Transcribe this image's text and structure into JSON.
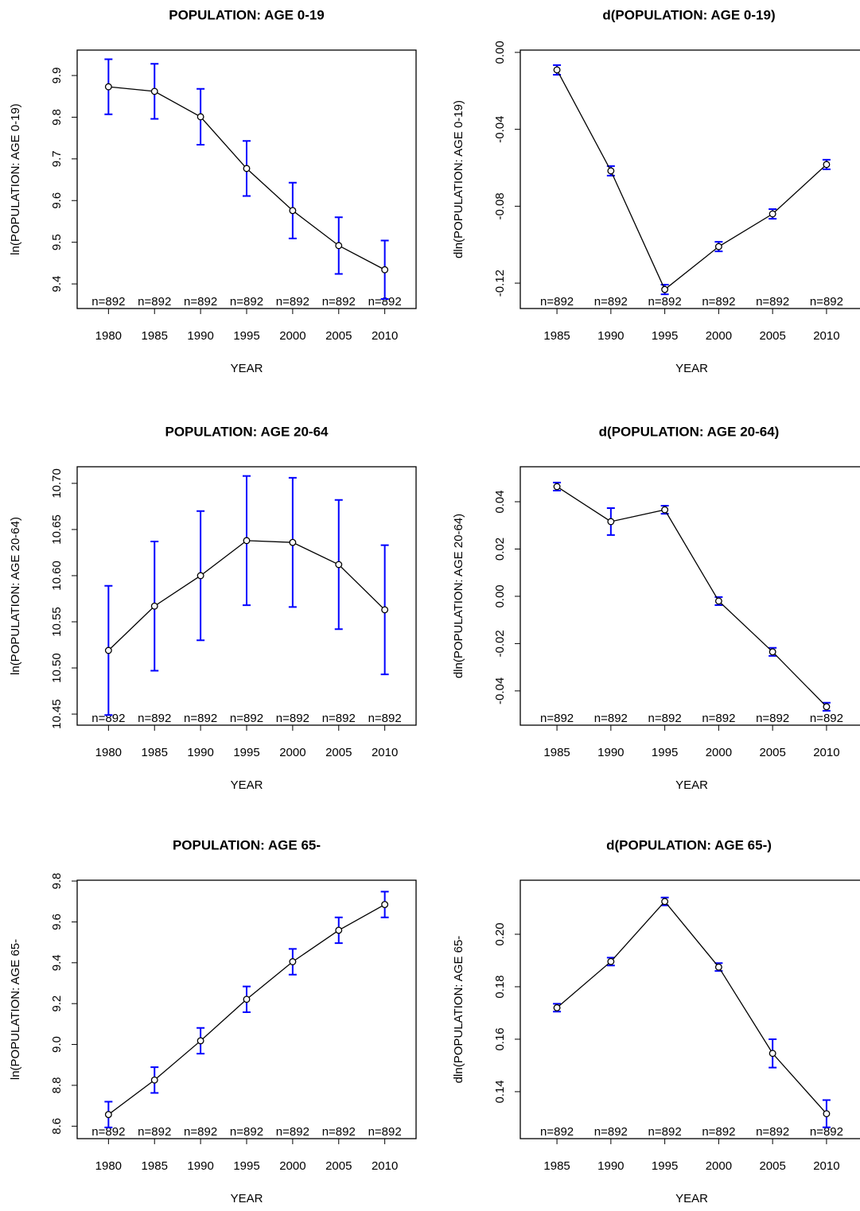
{
  "chart_data": [
    {
      "type": "line",
      "title": "POPULATION: AGE 0-19",
      "x_label": "YEAR",
      "y_label": "ln(POPULATION: AGE 0-19)",
      "categories": [
        "1980",
        "1985",
        "1990",
        "1995",
        "2000",
        "2005",
        "2010"
      ],
      "values": [
        9.873,
        9.862,
        9.801,
        9.677,
        9.576,
        9.492,
        9.434
      ],
      "errors": [
        0.066,
        0.066,
        0.067,
        0.066,
        0.067,
        0.068,
        0.07
      ],
      "n_labels": [
        "n=892",
        "n=892",
        "n=892",
        "n=892",
        "n=892",
        "n=892",
        "n=892"
      ],
      "color": "#000000",
      "error_color": "#0000ff",
      "ylim": [
        9.341,
        9.961
      ],
      "yticks": [
        9.4,
        9.5,
        9.6,
        9.7,
        9.8,
        9.9
      ],
      "grid": false
    },
    {
      "type": "line",
      "title": "d(POPULATION: AGE 0-19)",
      "x_label": "YEAR",
      "y_label": "dln(POPULATION: AGE 0-19)",
      "categories": [
        "1985",
        "1990",
        "1995",
        "2000",
        "2005",
        "2010"
      ],
      "values": [
        -0.0091,
        -0.0616,
        -0.1233,
        -0.101,
        -0.084,
        -0.0583
      ],
      "errors": [
        0.0025,
        0.0025,
        0.0025,
        0.0025,
        0.0025,
        0.0025
      ],
      "n_labels": [
        "n=892",
        "n=892",
        "n=892",
        "n=892",
        "n=892",
        "n=892"
      ],
      "color": "#000000",
      "error_color": "#0000ff",
      "ylim": [
        -0.1332,
        0.0012
      ],
      "yticks": [
        -0.12,
        -0.08,
        -0.04,
        {
          "value": 0,
          "label": "0.00"
        }
      ],
      "grid": false
    },
    {
      "type": "line",
      "title": "POPULATION: AGE 20-64",
      "x_label": "YEAR",
      "y_label": "ln(POPULATION: AGE 20-64)",
      "categories": [
        "1980",
        "1985",
        "1990",
        "1995",
        "2000",
        "2005",
        "2010"
      ],
      "values": [
        10.519,
        10.567,
        10.6,
        10.638,
        10.636,
        10.612,
        10.563
      ],
      "errors": [
        0.07,
        0.07,
        0.07,
        0.07,
        0.07,
        0.07,
        0.07
      ],
      "n_labels": [
        "n=892",
        "n=892",
        "n=892",
        "n=892",
        "n=892",
        "n=892",
        "n=892"
      ],
      "color": "#000000",
      "error_color": "#0000ff",
      "ylim": [
        10.438,
        10.718
      ],
      "yticks": [
        10.45,
        {
          "value": 10.5,
          "label": "10.50"
        },
        10.55,
        {
          "value": 10.6,
          "label": "10.60"
        },
        10.65,
        {
          "value": 10.7,
          "label": "10.70"
        }
      ],
      "grid": false
    },
    {
      "type": "line",
      "title": "d(POPULATION: AGE 20-64)",
      "x_label": "YEAR",
      "y_label": "dln(POPULATION: AGE 20-64)",
      "categories": [
        "1985",
        "1990",
        "1995",
        "2000",
        "2005",
        "2010"
      ],
      "values": [
        0.0464,
        0.0316,
        0.0366,
        -0.002,
        -0.0235,
        -0.0467
      ],
      "errors": [
        0.0017,
        0.0057,
        0.0017,
        0.0017,
        0.0017,
        0.0017
      ],
      "n_labels": [
        "n=892",
        "n=892",
        "n=892",
        "n=892",
        "n=892",
        "n=892"
      ],
      "color": "#000000",
      "error_color": "#0000ff",
      "ylim": [
        -0.0545,
        0.0548
      ],
      "yticks": [
        -0.04,
        -0.02,
        {
          "value": 0,
          "label": "0.00"
        },
        0.02,
        0.04
      ],
      "grid": false
    },
    {
      "type": "line",
      "title": "POPULATION: AGE 65-",
      "x_label": "YEAR",
      "y_label": "ln(POPULATION: AGE 65-",
      "categories": [
        "1980",
        "1985",
        "1990",
        "1995",
        "2000",
        "2005",
        "2010"
      ],
      "values": [
        8.657,
        8.826,
        9.018,
        9.221,
        9.405,
        9.559,
        9.685
      ],
      "errors": [
        0.063,
        0.063,
        0.063,
        0.063,
        0.063,
        0.063,
        0.063
      ],
      "n_labels": [
        "n=892",
        "n=892",
        "n=892",
        "n=892",
        "n=892",
        "n=892",
        "n=892"
      ],
      "color": "#000000",
      "error_color": "#0000ff",
      "ylim": [
        8.539,
        9.804
      ],
      "yticks": [
        8.6,
        8.8,
        {
          "value": 9,
          "label": "9.0"
        },
        9.2,
        9.4,
        9.6,
        9.8
      ],
      "grid": false
    },
    {
      "type": "line",
      "title": "d(POPULATION: AGE 65-)",
      "x_label": "YEAR",
      "y_label": "dln(POPULATION: AGE 65-",
      "categories": [
        "1985",
        "1990",
        "1995",
        "2000",
        "2005",
        "2010"
      ],
      "values": [
        0.172,
        0.1896,
        0.2125,
        0.1875,
        0.1546,
        0.1316
      ],
      "errors": [
        0.0015,
        0.0015,
        0.0015,
        0.0015,
        0.0054,
        0.0052
      ],
      "n_labels": [
        "n=892",
        "n=892",
        "n=892",
        "n=892",
        "n=892",
        "n=892"
      ],
      "color": "#000000",
      "error_color": "#0000ff",
      "ylim": [
        0.1221,
        0.2206
      ],
      "yticks": [
        0.14,
        0.16,
        0.18,
        {
          "value": 0.2,
          "label": "0.20"
        }
      ],
      "grid": false
    }
  ]
}
